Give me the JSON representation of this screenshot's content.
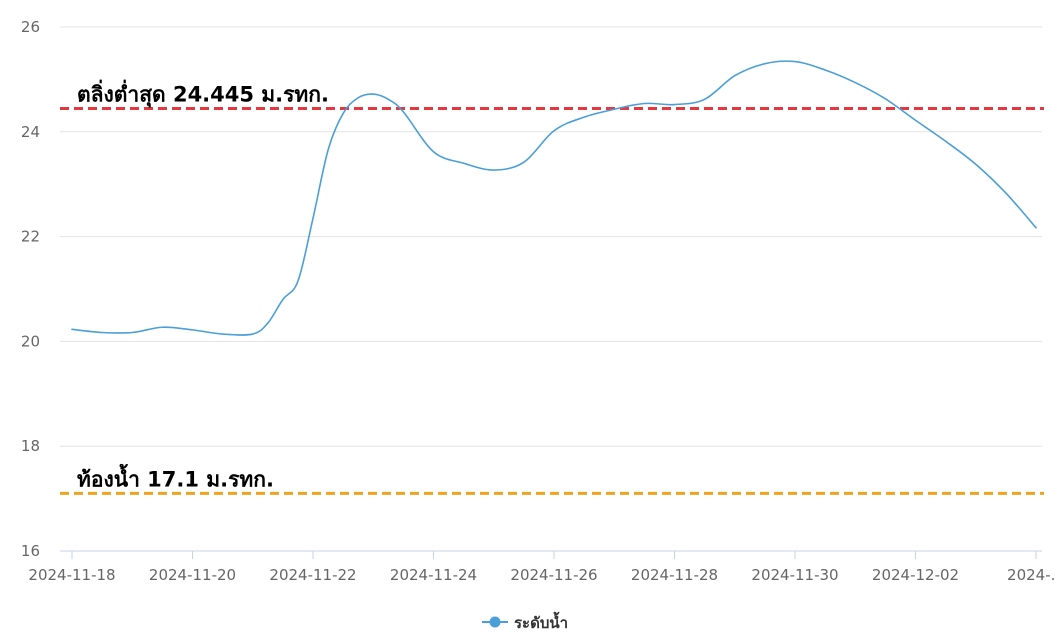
{
  "chart_data": {
    "type": "line",
    "title": "",
    "xlabel": "",
    "ylabel": "",
    "ylim": [
      16,
      26
    ],
    "yticks": [
      "16",
      "18",
      "20",
      "22",
      "24",
      "26"
    ],
    "xlim": [
      "2024-11-18",
      "2024-12-04"
    ],
    "xticks": [
      "2024-11-18",
      "2024-11-20",
      "2024-11-22",
      "2024-11-24",
      "2024-11-26",
      "2024-11-28",
      "2024-11-30",
      "2024-12-02",
      "2024-..."
    ],
    "grid": true,
    "legend_position": "bottom-center",
    "series": [
      {
        "name": "ระดับน้ำ",
        "color": "#4a9fd8",
        "x": [
          "2024-11-18 00:00",
          "2024-11-18 12:00",
          "2024-11-19 00:00",
          "2024-11-19 12:00",
          "2024-11-20 00:00",
          "2024-11-20 12:00",
          "2024-11-21 00:00",
          "2024-11-21 06:00",
          "2024-11-21 12:00",
          "2024-11-21 18:00",
          "2024-11-22 00:00",
          "2024-11-22 06:00",
          "2024-11-22 12:00",
          "2024-11-22 18:00",
          "2024-11-23 00:00",
          "2024-11-23 06:00",
          "2024-11-23 12:00",
          "2024-11-24 00:00",
          "2024-11-24 12:00",
          "2024-11-25 00:00",
          "2024-11-25 12:00",
          "2024-11-26 00:00",
          "2024-11-26 12:00",
          "2024-11-27 00:00",
          "2024-11-27 12:00",
          "2024-11-28 00:00",
          "2024-11-28 12:00",
          "2024-11-29 00:00",
          "2024-11-29 12:00",
          "2024-11-30 00:00",
          "2024-11-30 12:00",
          "2024-12-01 00:00",
          "2024-12-01 12:00",
          "2024-12-02 00:00",
          "2024-12-02 12:00",
          "2024-12-03 00:00",
          "2024-12-03 12:00",
          "2024-12-04 00:00"
        ],
        "values": [
          20.23,
          20.17,
          20.17,
          20.27,
          20.22,
          20.14,
          20.14,
          20.35,
          20.8,
          21.15,
          22.35,
          23.65,
          24.35,
          24.65,
          24.72,
          24.62,
          24.38,
          23.62,
          23.4,
          23.27,
          23.42,
          24.02,
          24.28,
          24.43,
          24.54,
          24.52,
          24.62,
          25.07,
          25.3,
          25.34,
          25.18,
          24.94,
          24.63,
          24.22,
          23.82,
          23.38,
          22.83,
          22.17
        ]
      }
    ],
    "reference_lines": [
      {
        "value": 24.445,
        "label": "ตลิ่งต่ำสุด 24.445 ม.รทก.",
        "color": "#e5373d"
      },
      {
        "value": 17.1,
        "label": "ท้องน้ำ 17.1 ม.รทก.",
        "color": "#f0a41e"
      }
    ]
  }
}
